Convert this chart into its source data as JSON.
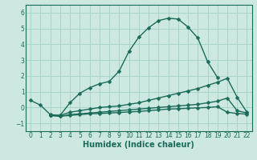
{
  "xlabel": "Humidex (Indice chaleur)",
  "bg_color": "#cce8e0",
  "grid_color": "#a8d4cc",
  "line_color": "#1a6b5a",
  "xlim": [
    -0.5,
    22.5
  ],
  "ylim": [
    -1.5,
    6.5
  ],
  "yticks": [
    -1,
    0,
    1,
    2,
    3,
    4,
    5,
    6
  ],
  "xticks": [
    0,
    1,
    2,
    3,
    4,
    5,
    6,
    7,
    8,
    9,
    10,
    11,
    12,
    13,
    14,
    15,
    16,
    17,
    18,
    19,
    20,
    21,
    22
  ],
  "series": [
    {
      "x": [
        0,
        1,
        2,
        3,
        4,
        5,
        6,
        7,
        8,
        9,
        10,
        11,
        12,
        13,
        14,
        15,
        16,
        17,
        18,
        19
      ],
      "y": [
        0.45,
        0.15,
        -0.45,
        -0.5,
        0.3,
        0.9,
        1.25,
        1.5,
        1.65,
        2.3,
        3.55,
        4.45,
        5.05,
        5.5,
        5.65,
        5.6,
        5.1,
        4.4,
        2.9,
        1.9
      ]
    },
    {
      "x": [
        2,
        3,
        4,
        5,
        6,
        7,
        8,
        9,
        10,
        11,
        12,
        13,
        14,
        15,
        16,
        17,
        18,
        19,
        20,
        21,
        22
      ],
      "y": [
        -0.5,
        -0.5,
        -0.3,
        -0.2,
        -0.1,
        0.0,
        0.05,
        0.1,
        0.2,
        0.3,
        0.45,
        0.6,
        0.75,
        0.9,
        1.05,
        1.2,
        1.4,
        1.6,
        1.85,
        0.65,
        -0.3
      ]
    },
    {
      "x": [
        2,
        3,
        4,
        5,
        6,
        7,
        8,
        9,
        10,
        11,
        12,
        13,
        14,
        15,
        16,
        17,
        18,
        19,
        20,
        21,
        22
      ],
      "y": [
        -0.5,
        -0.55,
        -0.45,
        -0.4,
        -0.35,
        -0.3,
        -0.25,
        -0.2,
        -0.15,
        -0.1,
        -0.05,
        0.0,
        0.05,
        0.1,
        0.15,
        0.2,
        0.3,
        0.4,
        0.6,
        -0.2,
        -0.35
      ]
    },
    {
      "x": [
        2,
        3,
        4,
        5,
        6,
        7,
        8,
        9,
        10,
        11,
        12,
        13,
        14,
        15,
        16,
        17,
        18,
        19,
        20,
        21,
        22
      ],
      "y": [
        -0.5,
        -0.55,
        -0.5,
        -0.45,
        -0.4,
        -0.38,
        -0.35,
        -0.32,
        -0.28,
        -0.25,
        -0.2,
        -0.15,
        -0.1,
        -0.08,
        -0.05,
        -0.02,
        0.0,
        0.05,
        -0.3,
        -0.38,
        -0.42
      ]
    }
  ],
  "xlabel_fontsize": 7,
  "tick_fontsize": 5.5,
  "linewidth": 1.0,
  "markersize": 2.5
}
